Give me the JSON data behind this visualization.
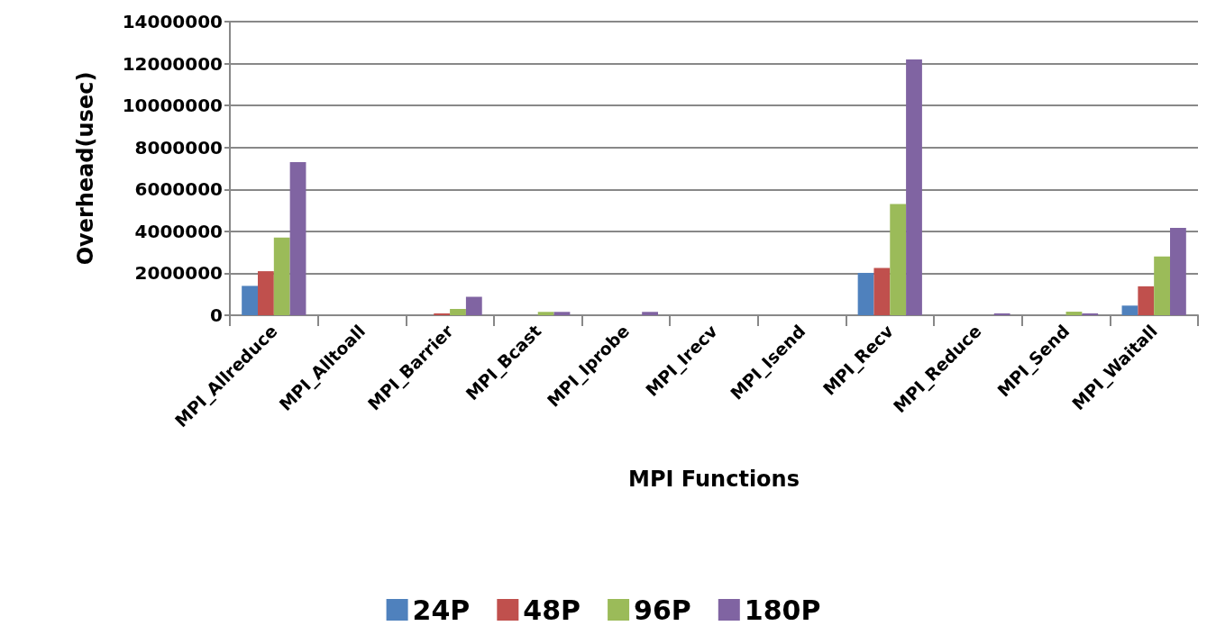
{
  "chart_data": {
    "type": "bar",
    "xlabel": "MPI Functions",
    "ylabel": "Overhead(usec)",
    "categories": [
      "MPI_Allreduce",
      "MPI_Alltoall",
      "MPI_Barrier",
      "MPI_Bcast",
      "MPI_Iprobe",
      "MPI_Irecv",
      "MPI_Isend",
      "MPI_Recv",
      "MPI_Reduce",
      "MPI_Send",
      "MPI_Waitall"
    ],
    "series": [
      {
        "name": "24P",
        "color": "#4f81bd",
        "values": [
          1400000,
          0,
          0,
          0,
          0,
          0,
          0,
          2020000,
          0,
          0,
          460000
        ]
      },
      {
        "name": "48P",
        "color": "#c0504d",
        "values": [
          2100000,
          0,
          90000,
          0,
          0,
          0,
          0,
          2250000,
          0,
          0,
          1380000
        ]
      },
      {
        "name": "96P",
        "color": "#9bbb59",
        "values": [
          3700000,
          0,
          300000,
          160000,
          0,
          0,
          0,
          5300000,
          0,
          170000,
          2800000
        ]
      },
      {
        "name": "180P",
        "color": "#8064a2",
        "values": [
          7300000,
          0,
          880000,
          160000,
          160000,
          0,
          0,
          12200000,
          90000,
          90000,
          4170000
        ]
      }
    ],
    "ylim": [
      0,
      14000000
    ],
    "yticks": [
      0,
      2000000,
      4000000,
      6000000,
      8000000,
      10000000,
      12000000,
      14000000
    ],
    "grid": "y",
    "legend": "bottom"
  }
}
